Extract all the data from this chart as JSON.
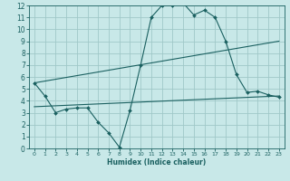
{
  "xlabel": "Humidex (Indice chaleur)",
  "bg_color": "#c8e8e8",
  "grid_color": "#a0c8c8",
  "line_color": "#1a6060",
  "xlim": [
    -0.5,
    23.5
  ],
  "ylim": [
    0,
    12
  ],
  "xticks": [
    0,
    1,
    2,
    3,
    4,
    5,
    6,
    7,
    8,
    9,
    10,
    11,
    12,
    13,
    14,
    15,
    16,
    17,
    18,
    19,
    20,
    21,
    22,
    23
  ],
  "yticks": [
    0,
    1,
    2,
    3,
    4,
    5,
    6,
    7,
    8,
    9,
    10,
    11,
    12
  ],
  "line1_x": [
    0,
    1,
    2,
    3,
    4,
    5,
    6,
    7,
    8,
    9,
    10,
    11,
    12,
    13,
    14,
    15,
    16,
    17,
    18,
    19,
    20,
    21,
    22,
    23
  ],
  "line1_y": [
    5.5,
    4.4,
    3.0,
    3.3,
    3.4,
    3.4,
    2.2,
    1.3,
    0.1,
    3.2,
    7.0,
    11.0,
    12.0,
    12.0,
    12.2,
    11.2,
    11.6,
    11.0,
    9.0,
    6.2,
    4.7,
    4.8,
    4.5,
    4.3
  ],
  "line2_x": [
    0,
    23
  ],
  "line2_y": [
    5.5,
    9.0
  ],
  "line3_x": [
    0,
    23
  ],
  "line3_y": [
    3.5,
    4.4
  ],
  "xlabel_fontsize": 5.5,
  "tick_fontsize_x": 4.5,
  "tick_fontsize_y": 5.5
}
